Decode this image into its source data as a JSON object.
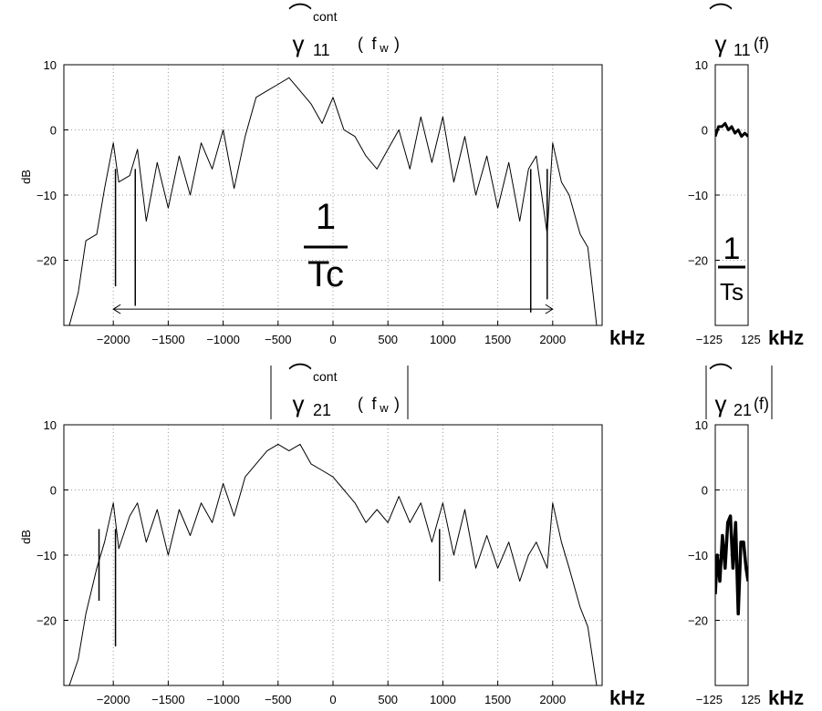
{
  "unit_label": "kHz",
  "chart_data": [
    {
      "id": "g11_cont",
      "type": "line",
      "title": {
        "symbol": "γ",
        "subscript": "11",
        "superscript": "cont",
        "hat": "⌒",
        "arg_base": "f",
        "arg_sub": "w"
      },
      "ylabel": "dB",
      "xlabel": "kHz",
      "xlim": [
        -2450,
        2450
      ],
      "ylim": [
        -30,
        10
      ],
      "xticks": [
        -2000,
        -1500,
        -1000,
        -500,
        0,
        500,
        1000,
        1500,
        2000
      ],
      "xtick_labels": [
        "−2000",
        "−1500",
        "−1000",
        "−500",
        "0",
        "500",
        "1000",
        "1500",
        "2000"
      ],
      "yticks": [
        10,
        0,
        -10,
        -20
      ],
      "ytick_labels": [
        "10",
        "0",
        "−10",
        "−20"
      ],
      "grid": true,
      "annotation": {
        "numerator": "1",
        "denominator": "Tc",
        "arrow_from": -2000,
        "arrow_to": 2000,
        "arrow_y": -27.5
      },
      "series": [
        {
          "x": [
            -2400,
            -2320,
            -2250,
            -2150,
            -2080,
            -2000,
            -1950,
            -1850,
            -1780,
            -1700,
            -1600,
            -1500,
            -1400,
            -1300,
            -1200,
            -1100,
            -1000,
            -900,
            -800,
            -700,
            -600,
            -500,
            -400,
            -300,
            -200,
            -100,
            0,
            100,
            200,
            300,
            400,
            500,
            600,
            700,
            800,
            900,
            1000,
            1100,
            1200,
            1300,
            1400,
            1500,
            1600,
            1700,
            1780,
            1850,
            1950,
            2000,
            2080,
            2150,
            2250,
            2320,
            2400
          ],
          "y": [
            -30,
            -25,
            -17,
            -16,
            -9,
            -2,
            -8,
            -7,
            -3,
            -14,
            -5,
            -12,
            -4,
            -10,
            -2,
            -6,
            0,
            -9,
            -1,
            5,
            6,
            7,
            8,
            6,
            4,
            1,
            5,
            0,
            -1,
            -4,
            -6,
            -3,
            0,
            -6,
            2,
            -5,
            2,
            -8,
            -1,
            -10,
            -4,
            -12,
            -5,
            -14,
            -6,
            -4,
            -16,
            -2,
            -8,
            -10,
            -16,
            -18,
            -30
          ],
          "spikes": [
            {
              "x": -1980,
              "y": -24
            },
            {
              "x": -1800,
              "y": -27
            },
            {
              "x": 1800,
              "y": -28
            },
            {
              "x": 1950,
              "y": -26
            }
          ]
        }
      ]
    },
    {
      "id": "g11_f",
      "type": "line",
      "title": {
        "symbol": "γ",
        "subscript": "11",
        "hat": "⌒",
        "arg": "(f)"
      },
      "xlabel": "kHz",
      "xlim": [
        -125,
        125
      ],
      "ylim": [
        -30,
        10
      ],
      "xticks": [
        -125,
        125
      ],
      "xtick_labels": [
        "−125",
        "125"
      ],
      "yticks": [
        10,
        0,
        -10,
        -20
      ],
      "ytick_labels": [
        "10",
        "0",
        "−10",
        "−20"
      ],
      "grid": true,
      "annotation": {
        "numerator": "1",
        "denominator": "Ts"
      },
      "series": [
        {
          "x": [
            -125,
            -100,
            -75,
            -50,
            -25,
            0,
            25,
            50,
            75,
            100,
            125
          ],
          "y": [
            -1,
            0.5,
            0.5,
            1,
            0,
            0.5,
            -0.5,
            0,
            -1,
            -0.5,
            -1
          ]
        }
      ]
    },
    {
      "id": "g21_cont",
      "type": "line",
      "title": {
        "symbol": "γ",
        "subscript": "21",
        "superscript": "cont",
        "hat": "⌒",
        "arg_base": "f",
        "arg_sub": "w",
        "abs": true
      },
      "ylabel": "dB",
      "xlabel": "kHz",
      "xlim": [
        -2450,
        2450
      ],
      "ylim": [
        -30,
        10
      ],
      "xticks": [
        -2000,
        -1500,
        -1000,
        -500,
        0,
        500,
        1000,
        1500,
        2000
      ],
      "xtick_labels": [
        "−2000",
        "−1500",
        "−1000",
        "−500",
        "0",
        "500",
        "1000",
        "1500",
        "2000"
      ],
      "yticks": [
        10,
        0,
        -10,
        -20
      ],
      "ytick_labels": [
        "10",
        "0",
        "−10",
        "−20"
      ],
      "grid": true,
      "series": [
        {
          "x": [
            -2400,
            -2320,
            -2250,
            -2150,
            -2080,
            -2000,
            -1950,
            -1850,
            -1780,
            -1700,
            -1600,
            -1500,
            -1400,
            -1300,
            -1200,
            -1100,
            -1000,
            -900,
            -800,
            -700,
            -600,
            -500,
            -400,
            -300,
            -200,
            -100,
            0,
            100,
            200,
            300,
            400,
            500,
            600,
            700,
            800,
            900,
            1000,
            1100,
            1200,
            1300,
            1400,
            1500,
            1600,
            1700,
            1780,
            1850,
            1950,
            2000,
            2080,
            2150,
            2250,
            2320,
            2400
          ],
          "y": [
            -30,
            -26,
            -19,
            -12,
            -8,
            -2,
            -9,
            -4,
            -2,
            -8,
            -3,
            -10,
            -3,
            -7,
            -2,
            -5,
            1,
            -4,
            2,
            4,
            6,
            7,
            6,
            7,
            4,
            3,
            2,
            0,
            -2,
            -5,
            -3,
            -5,
            -1,
            -5,
            -2,
            -8,
            -2,
            -10,
            -3,
            -12,
            -7,
            -12,
            -8,
            -14,
            -10,
            -8,
            -12,
            -2,
            -8,
            -12,
            -18,
            -21,
            -30
          ],
          "spikes": [
            {
              "x": -1980,
              "y": -24
            },
            {
              "x": -2130,
              "y": -17
            },
            {
              "x": 970,
              "y": -14
            }
          ]
        }
      ]
    },
    {
      "id": "g21_f",
      "type": "line",
      "title": {
        "symbol": "γ",
        "subscript": "21",
        "hat": "⌒",
        "arg": "(f)",
        "abs": true
      },
      "xlabel": "kHz",
      "xlim": [
        -125,
        125
      ],
      "ylim": [
        -30,
        10
      ],
      "xticks": [
        -125,
        125
      ],
      "xtick_labels": [
        "−125",
        "125"
      ],
      "yticks": [
        10,
        0,
        -10,
        -20
      ],
      "ytick_labels": [
        "10",
        "0",
        "−10",
        "−20"
      ],
      "grid": true,
      "series": [
        {
          "x": [
            -125,
            -110,
            -90,
            -70,
            -50,
            -30,
            -10,
            10,
            30,
            50,
            70,
            90,
            110,
            125
          ],
          "y": [
            -16,
            -10,
            -14,
            -7,
            -12,
            -5,
            -4,
            -12,
            -5,
            -19,
            -8,
            -8,
            -12,
            -14
          ]
        }
      ]
    }
  ]
}
